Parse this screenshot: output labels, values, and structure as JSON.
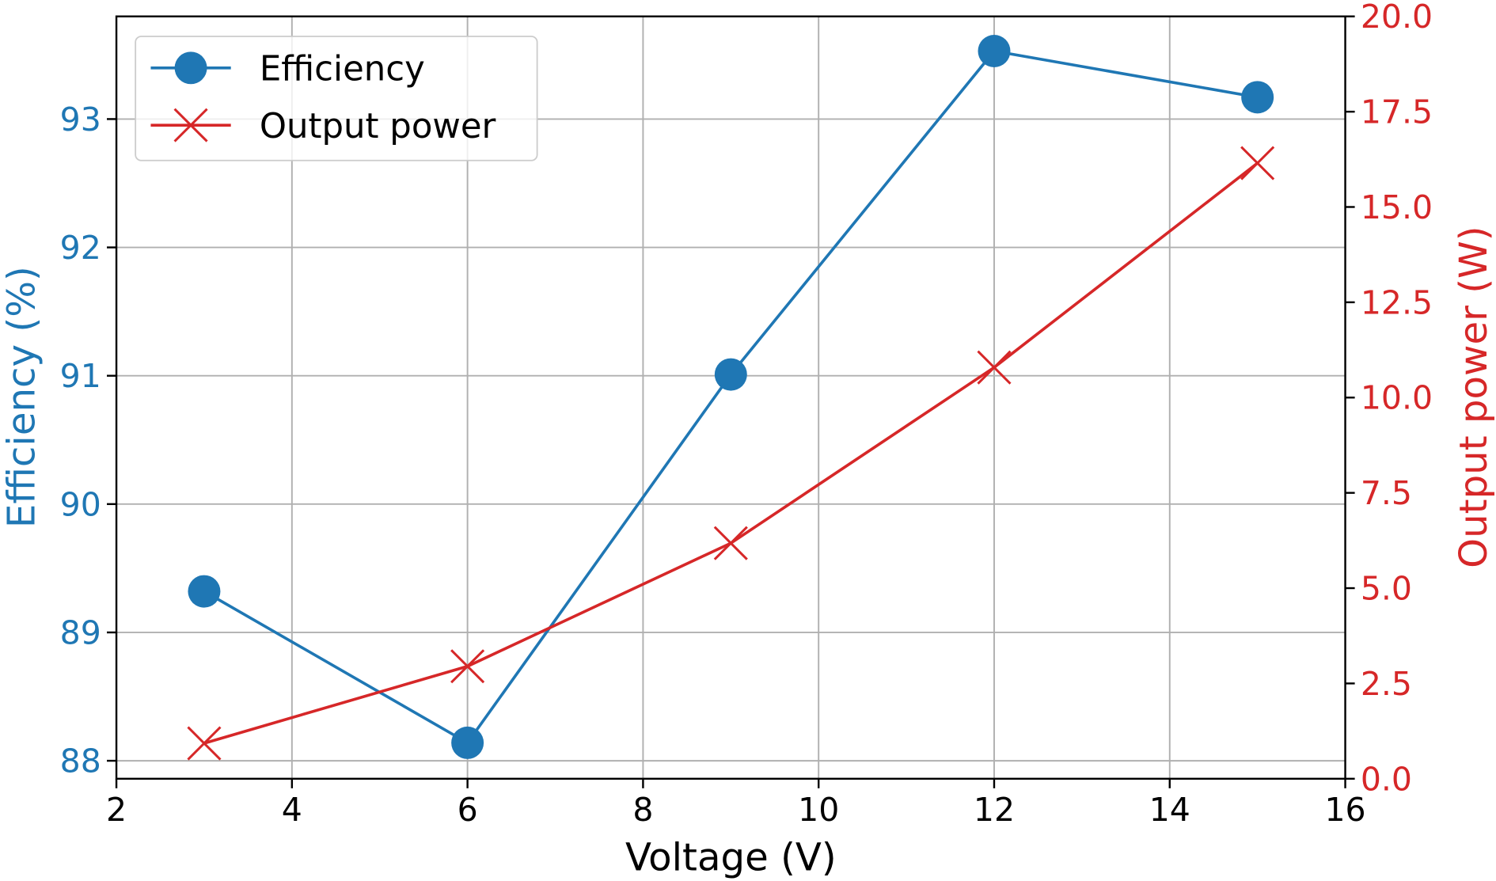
{
  "chart_data": {
    "type": "line",
    "x": [
      3,
      6,
      9,
      12,
      15
    ],
    "xlabel": "Voltage (V)",
    "xlim": [
      2,
      16
    ],
    "xticks": [
      "2",
      "4",
      "6",
      "8",
      "10",
      "12",
      "14",
      "16"
    ],
    "grid": true,
    "legend_position": "top-left",
    "series": [
      {
        "name": "Efficiency",
        "axis": "left",
        "marker": "circle",
        "color": "#1f77b4",
        "values": [
          89.32,
          88.14,
          91.01,
          93.53,
          93.17
        ]
      },
      {
        "name": "Output power",
        "axis": "right",
        "marker": "x",
        "color": "#d62728",
        "values": [
          0.93,
          2.95,
          6.18,
          10.79,
          16.15
        ]
      }
    ],
    "left_axis": {
      "label": "Efficiency (%)",
      "ylim": [
        87.86,
        93.8
      ],
      "ticks": [
        "88",
        "89",
        "90",
        "91",
        "92",
        "93"
      ],
      "color": "#1f77b4"
    },
    "right_axis": {
      "label": "Output power (W)",
      "ylim": [
        0,
        20
      ],
      "ticks": [
        "0.0",
        "2.5",
        "5.0",
        "7.5",
        "10.0",
        "12.5",
        "15.0",
        "17.5",
        "20.0"
      ],
      "color": "#d62728"
    }
  }
}
